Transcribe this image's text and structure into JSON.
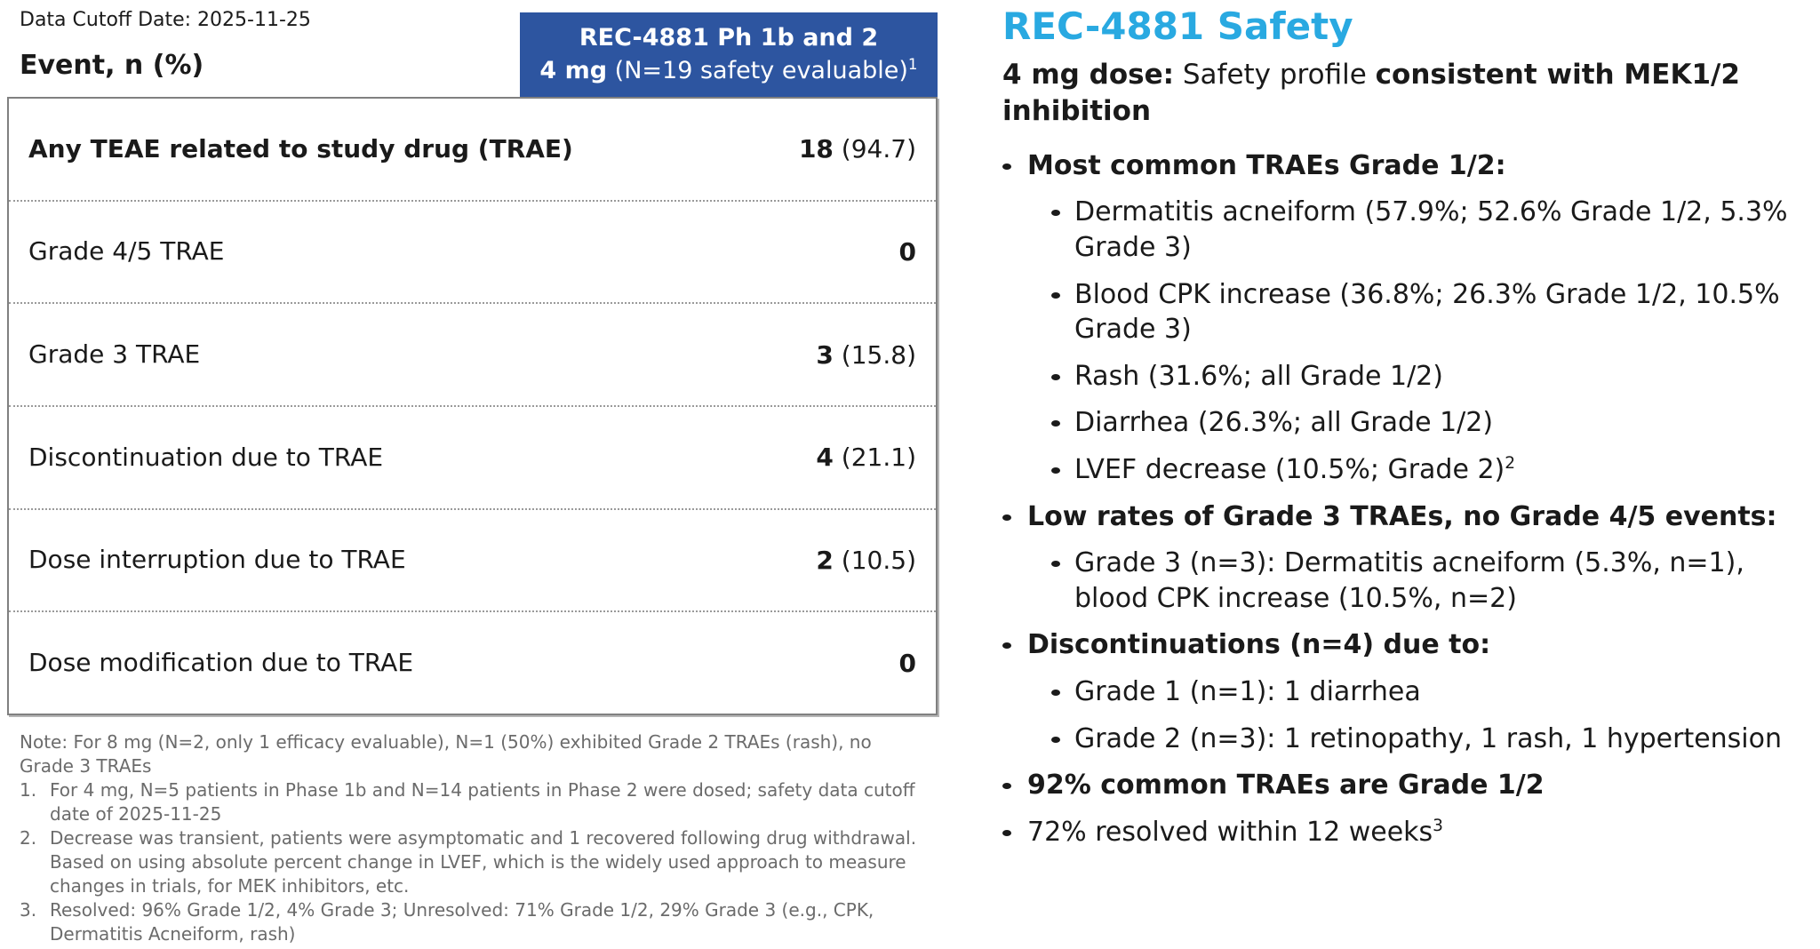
{
  "colors": {
    "header_blue": "#2d55a0",
    "title_cyan": "#29a9e1",
    "footnote_gray": "#6b6b6b"
  },
  "left_panel": {
    "data_cutoff": "Data Cutoff Date: 2025-11-25",
    "column_header": "Event, n (%)",
    "table_header": {
      "line1": "REC-4881 Ph 1b and 2",
      "line2_bold": "4 mg",
      "line2_rest": " (N=19 safety evaluable)",
      "line2_sup": "1"
    },
    "rows": [
      {
        "label": "Any TEAE related to study drug (TRAE)",
        "n": "18",
        "pct": " (94.7)"
      },
      {
        "label": "Grade 4/5 TRAE",
        "n": "0",
        "pct": ""
      },
      {
        "label": "Grade 3 TRAE",
        "n": "3",
        "pct": " (15.8)"
      },
      {
        "label": "Discontinuation due to TRAE",
        "n": "4",
        "pct": " (21.1)"
      },
      {
        "label": "Dose interruption due to TRAE",
        "n": "2",
        "pct": " (10.5)"
      },
      {
        "label": "Dose modification due to TRAE",
        "n": "0",
        "pct": ""
      }
    ],
    "footnotes": {
      "note": "Note: For 8 mg (N=2, only 1 efficacy evaluable), N=1 (50%) exhibited Grade 2 TRAEs (rash), no Grade 3 TRAEs",
      "items": [
        {
          "num": "1.",
          "text": "For 4 mg, N=5 patients in Phase 1b and N=14 patients in Phase 2 were dosed; safety data cutoff date of 2025-11-25"
        },
        {
          "num": "2.",
          "text": "Decrease was transient, patients were asymptomatic and 1 recovered following drug withdrawal. Based on using absolute percent change in LVEF, which is the widely used approach to measure changes in trials, for MEK inhibitors, etc."
        },
        {
          "num": "3.",
          "text": "Resolved: 96% Grade 1/2, 4% Grade 3; Unresolved: 71% Grade 1/2, 29% Grade 3 (e.g., CPK, Dermatitis Acneiform, rash)"
        }
      ]
    }
  },
  "right_panel": {
    "title": "REC-4881 Safety",
    "subtitle": {
      "bold1": "4 mg dose:",
      "regular": " Safety profile ",
      "bold2": "consistent with MEK1/2 inhibition"
    },
    "bullets": [
      {
        "text": "Most common TRAEs Grade 1/2:",
        "children": [
          {
            "text": "Dermatitis acneiform (57.9%; 52.6% Grade 1/2, 5.3% Grade 3)"
          },
          {
            "text": "Blood CPK increase (36.8%; 26.3% Grade 1/2, 10.5% Grade 3)"
          },
          {
            "text": "Rash (31.6%; all Grade 1/2)"
          },
          {
            "text": "Diarrhea (26.3%; all Grade 1/2)"
          },
          {
            "text": "LVEF decrease (10.5%; Grade 2)",
            "sup": "2"
          }
        ]
      },
      {
        "text": "Low rates of Grade 3 TRAEs, no Grade 4/5 events:",
        "children": [
          {
            "text": "Grade 3 (n=3): Dermatitis acneiform (5.3%, n=1), blood CPK increase (10.5%, n=2)"
          }
        ]
      },
      {
        "text": "Discontinuations (n=4) due to:",
        "children": [
          {
            "text": "Grade 1 (n=1): 1 diarrhea"
          },
          {
            "text": "Grade 2 (n=3): 1 retinopathy, 1 rash, 1 hypertension"
          }
        ]
      },
      {
        "text": "92% common TRAEs are Grade 1/2",
        "children": []
      },
      {
        "text": "72% resolved within 12 weeks",
        "sup": "3",
        "children": []
      }
    ]
  }
}
